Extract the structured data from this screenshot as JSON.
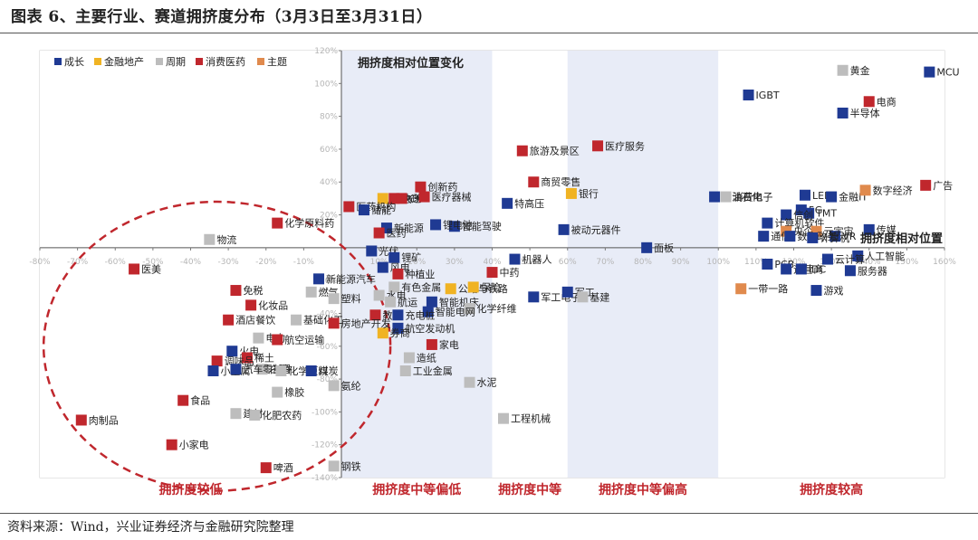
{
  "title": "图表 6、主要行业、赛道拥挤度分布（3月3日至3月31日）",
  "source": "资料来源：Wind，兴业证券经济与金融研究院整理",
  "chart_data": {
    "type": "scatter",
    "title": "拥挤度相对位置变化",
    "xlabel": "拥挤度相对位置",
    "ylabel": "",
    "xlim": [
      -80,
      160
    ],
    "ylim": [
      -140,
      120
    ],
    "x_ticks": [
      "-80%",
      "-70%",
      "-60%",
      "-50%",
      "-40%",
      "-30%",
      "-20%",
      "-10%",
      "10%",
      "20%",
      "30%",
      "40%",
      "50%",
      "60%",
      "70%",
      "80%",
      "90%",
      "100%",
      "110%",
      "120%",
      "130%",
      "140%",
      "150%",
      "160%"
    ],
    "y_ticks": [
      "120%",
      "100%",
      "80%",
      "60%",
      "40%",
      "20%",
      "-20%",
      "-40%",
      "-60%",
      "-80%",
      "-100%",
      "-120%",
      "-140%"
    ],
    "grid": false,
    "legend_position": "top-left",
    "legend": [
      {
        "key": "growth",
        "label": "成长",
        "color": "#1f3a93"
      },
      {
        "key": "finance",
        "label": "金融地产",
        "color": "#f0b323"
      },
      {
        "key": "cyclical",
        "label": "周期",
        "color": "#bdbdbd"
      },
      {
        "key": "consumer",
        "label": "消费医药",
        "color": "#c0272d"
      },
      {
        "key": "theme",
        "label": "主题",
        "color": "#e08a4d"
      }
    ],
    "zones": [
      {
        "label": "拥挤度较低",
        "x0": -80,
        "x1": 0,
        "fill": "#ffffff"
      },
      {
        "label": "拥挤度中等偏低",
        "x0": 0,
        "x1": 40,
        "fill": "#e8ecf7"
      },
      {
        "label": "拥挤度中等",
        "x0": 40,
        "x1": 60,
        "fill": "#ffffff"
      },
      {
        "label": "拥挤度中等偏高",
        "x0": 60,
        "x1": 100,
        "fill": "#e8ecf7"
      },
      {
        "label": "拥挤度较高",
        "x0": 100,
        "x1": 160,
        "fill": "#ffffff"
      }
    ],
    "ellipse": {
      "cx": -33,
      "cy": -60,
      "rx": 46,
      "ry": 88
    },
    "points": [
      {
        "label": "黄金",
        "cat": "cyclical",
        "x": 133,
        "y": 108
      },
      {
        "label": "MCU",
        "cat": "growth",
        "x": 156,
        "y": 107
      },
      {
        "label": "IGBT",
        "cat": "growth",
        "x": 108,
        "y": 93
      },
      {
        "label": "电商",
        "cat": "consumer",
        "x": 140,
        "y": 89
      },
      {
        "label": "半导体",
        "cat": "growth",
        "x": 133,
        "y": 82
      },
      {
        "label": "医疗服务",
        "cat": "consumer",
        "x": 68,
        "y": 62
      },
      {
        "label": "旅游及景区",
        "cat": "consumer",
        "x": 48,
        "y": 59
      },
      {
        "label": "商贸零售",
        "cat": "consumer",
        "x": 51,
        "y": 40
      },
      {
        "label": "创新药",
        "cat": "consumer",
        "x": 21,
        "y": 37
      },
      {
        "label": "石油石化",
        "cat": "growth",
        "x": 99,
        "y": 31
      },
      {
        "label": "LED",
        "cat": "growth",
        "x": 123,
        "y": 32
      },
      {
        "label": "金融IT",
        "cat": "growth",
        "x": 130,
        "y": 31
      },
      {
        "label": "数字经济",
        "cat": "theme",
        "x": 139,
        "y": 35
      },
      {
        "label": "广告",
        "cat": "consumer",
        "x": 155,
        "y": 38
      },
      {
        "label": "银行",
        "cat": "finance",
        "x": 61,
        "y": 33
      },
      {
        "label": "消费电子",
        "cat": "cyclical",
        "x": 102,
        "y": 31
      },
      {
        "label": "房地产",
        "cat": "finance",
        "x": 11,
        "y": 30
      },
      {
        "label": "快递",
        "cat": "consumer",
        "x": 14,
        "y": 30
      },
      {
        "label": "CXO",
        "cat": "consumer",
        "x": 16,
        "y": 30
      },
      {
        "label": "医疗器械",
        "cat": "consumer",
        "x": 22,
        "y": 31
      },
      {
        "label": "特高压",
        "cat": "growth",
        "x": 44,
        "y": 27
      },
      {
        "label": "医药机构",
        "cat": "consumer",
        "x": 2,
        "y": 25
      },
      {
        "label": "储能",
        "cat": "growth",
        "x": 6,
        "y": 23
      },
      {
        "label": "5G",
        "cat": "growth",
        "x": 122,
        "y": 23
      },
      {
        "label": "TMT",
        "cat": "growth",
        "x": 124,
        "y": 21
      },
      {
        "label": "信创",
        "cat": "growth",
        "x": 118,
        "y": 20
      },
      {
        "label": "计算机软件",
        "cat": "growth",
        "x": 113,
        "y": 15
      },
      {
        "label": "传媒",
        "cat": "growth",
        "x": 140,
        "y": 11
      },
      {
        "label": "智能驾驶",
        "cat": "growth",
        "x": 30,
        "y": 13
      },
      {
        "label": "锂电池",
        "cat": "growth",
        "x": 25,
        "y": 14
      },
      {
        "label": "新能源",
        "cat": "growth",
        "x": 12,
        "y": 12
      },
      {
        "label": "医药",
        "cat": "consumer",
        "x": 10,
        "y": 9
      },
      {
        "label": "被动元器件",
        "cat": "growth",
        "x": 59,
        "y": 11
      },
      {
        "label": "央企",
        "cat": "theme",
        "x": 118,
        "y": 10
      },
      {
        "label": "VR",
        "cat": "growth",
        "x": 131,
        "y": 7
      },
      {
        "label": "元宇宙",
        "cat": "theme",
        "x": 126,
        "y": 10
      },
      {
        "label": "通信",
        "cat": "growth",
        "x": 112,
        "y": 7
      },
      {
        "label": "数字政务",
        "cat": "growth",
        "x": 119,
        "y": 7
      },
      {
        "label": "计算机",
        "cat": "growth",
        "x": 125,
        "y": 6
      },
      {
        "label": "面板",
        "cat": "growth",
        "x": 81,
        "y": 0
      },
      {
        "label": "光伏",
        "cat": "growth",
        "x": 8,
        "y": -2
      },
      {
        "label": "锂矿",
        "cat": "growth",
        "x": 14,
        "y": -6
      },
      {
        "label": "机器人",
        "cat": "growth",
        "x": 46,
        "y": -7
      },
      {
        "label": "人工智能",
        "cat": "growth",
        "x": 137,
        "y": -5
      },
      {
        "label": "云计算",
        "cat": "growth",
        "x": 129,
        "y": -7
      },
      {
        "label": "PCB",
        "cat": "growth",
        "x": 113,
        "y": -10
      },
      {
        "label": "运营商",
        "cat": "growth",
        "x": 118,
        "y": -13
      },
      {
        "label": "IDC",
        "cat": "growth",
        "x": 122,
        "y": -13
      },
      {
        "label": "服务器",
        "cat": "growth",
        "x": 135,
        "y": -14
      },
      {
        "label": "风电",
        "cat": "growth",
        "x": 11,
        "y": -12
      },
      {
        "label": "种植业",
        "cat": "consumer",
        "x": 15,
        "y": -16
      },
      {
        "label": "中药",
        "cat": "consumer",
        "x": 40,
        "y": -15
      },
      {
        "label": "有色金属",
        "cat": "cyclical",
        "x": 14,
        "y": -24
      },
      {
        "label": "公路与铁路",
        "cat": "finance",
        "x": 29,
        "y": -25
      },
      {
        "label": "保险",
        "cat": "finance",
        "x": 35,
        "y": -24
      },
      {
        "label": "军工电子",
        "cat": "growth",
        "x": 51,
        "y": -30
      },
      {
        "label": "军工",
        "cat": "growth",
        "x": 60,
        "y": -27
      },
      {
        "label": "基建",
        "cat": "cyclical",
        "x": 64,
        "y": -30
      },
      {
        "label": "一带一路",
        "cat": "theme",
        "x": 106,
        "y": -25
      },
      {
        "label": "游戏",
        "cat": "growth",
        "x": 126,
        "y": -26
      },
      {
        "label": "水电",
        "cat": "cyclical",
        "x": 10,
        "y": -29
      },
      {
        "label": "航运",
        "cat": "cyclical",
        "x": 13,
        "y": -33
      },
      {
        "label": "智能机床",
        "cat": "growth",
        "x": 24,
        "y": -33
      },
      {
        "label": "化学纤维",
        "cat": "cyclical",
        "x": 34,
        "y": -37
      },
      {
        "label": "智能电网",
        "cat": "growth",
        "x": 23,
        "y": -39
      },
      {
        "label": "教育",
        "cat": "consumer",
        "x": 9,
        "y": -41
      },
      {
        "label": "充电桩",
        "cat": "growth",
        "x": 15,
        "y": -41
      },
      {
        "label": "航空发动机",
        "cat": "growth",
        "x": 15,
        "y": -49
      },
      {
        "label": "券商",
        "cat": "finance",
        "x": 11,
        "y": -52
      },
      {
        "label": "家电",
        "cat": "consumer",
        "x": 24,
        "y": -59
      },
      {
        "label": "造纸",
        "cat": "cyclical",
        "x": 18,
        "y": -67
      },
      {
        "label": "工业金属",
        "cat": "cyclical",
        "x": 17,
        "y": -75
      },
      {
        "label": "水泥",
        "cat": "cyclical",
        "x": 34,
        "y": -82
      },
      {
        "label": "工程机械",
        "cat": "cyclical",
        "x": 43,
        "y": -104
      },
      {
        "label": "钢铁",
        "cat": "cyclical",
        "x": -2,
        "y": -133
      },
      {
        "label": "物流",
        "cat": "cyclical",
        "x": -35,
        "y": 5
      },
      {
        "label": "化学原料药",
        "cat": "consumer",
        "x": -17,
        "y": 15
      },
      {
        "label": "医美",
        "cat": "consumer",
        "x": -55,
        "y": -13
      },
      {
        "label": "免税",
        "cat": "consumer",
        "x": -28,
        "y": -26
      },
      {
        "label": "新能源汽车",
        "cat": "growth",
        "x": -6,
        "y": -19
      },
      {
        "label": "燃气",
        "cat": "cyclical",
        "x": -8,
        "y": -27
      },
      {
        "label": "化妆品",
        "cat": "consumer",
        "x": -24,
        "y": -35
      },
      {
        "label": "塑料",
        "cat": "cyclical",
        "x": -2,
        "y": -31
      },
      {
        "label": "基础化工",
        "cat": "cyclical",
        "x": -12,
        "y": -44
      },
      {
        "label": "酒店餐饮",
        "cat": "consumer",
        "x": -30,
        "y": -44
      },
      {
        "label": "房地产开发",
        "cat": "consumer",
        "x": -2,
        "y": -46
      },
      {
        "label": "电力",
        "cat": "cyclical",
        "x": -22,
        "y": -55
      },
      {
        "label": "航空运输",
        "cat": "consumer",
        "x": -17,
        "y": -56
      },
      {
        "label": "火电",
        "cat": "growth",
        "x": -29,
        "y": -63
      },
      {
        "label": "稀土",
        "cat": "consumer",
        "x": -25,
        "y": -67
      },
      {
        "label": "调味品",
        "cat": "consumer",
        "x": -33,
        "y": -69
      },
      {
        "label": "白酒",
        "cat": "cyclical",
        "x": -21,
        "y": -74
      },
      {
        "label": "小金属",
        "cat": "growth",
        "x": -34,
        "y": -75
      },
      {
        "label": "汽车零部件",
        "cat": "growth",
        "x": -28,
        "y": -74
      },
      {
        "label": "化学原料",
        "cat": "cyclical",
        "x": -16,
        "y": -75
      },
      {
        "label": "煤炭",
        "cat": "growth",
        "x": -8,
        "y": -75
      },
      {
        "label": "氨纶",
        "cat": "cyclical",
        "x": -2,
        "y": -84
      },
      {
        "label": "橡胶",
        "cat": "cyclical",
        "x": -17,
        "y": -88
      },
      {
        "label": "食品",
        "cat": "consumer",
        "x": -42,
        "y": -93
      },
      {
        "label": "建材",
        "cat": "cyclical",
        "x": -28,
        "y": -101
      },
      {
        "label": "肉制品",
        "cat": "consumer",
        "x": -69,
        "y": -105
      },
      {
        "label": "化肥农药",
        "cat": "cyclical",
        "x": -23,
        "y": -102
      },
      {
        "label": "小家电",
        "cat": "consumer",
        "x": -45,
        "y": -120
      },
      {
        "label": "啤酒",
        "cat": "consumer",
        "x": -20,
        "y": -134
      }
    ]
  }
}
